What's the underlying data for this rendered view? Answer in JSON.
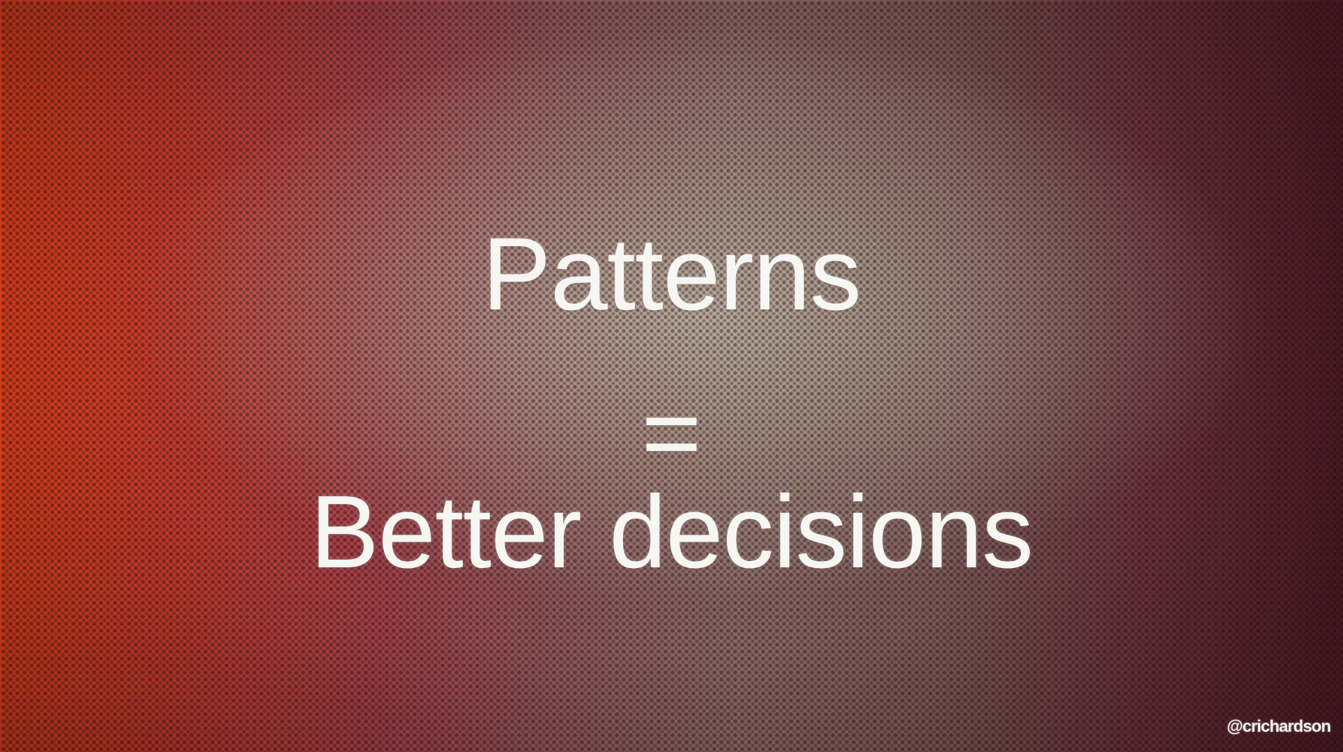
{
  "slide": {
    "line1": "Patterns",
    "line2": "=",
    "line3": "Better decisions",
    "handle": "@crichardson"
  },
  "colors": {
    "left_edge": "#e2401a",
    "center": "#cdc8b4",
    "right_edge": "#4c1a26",
    "text": "#f6f6f2"
  }
}
